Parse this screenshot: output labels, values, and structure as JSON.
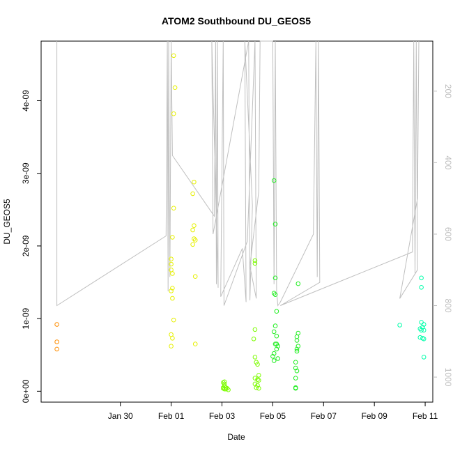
{
  "chart_data": {
    "type": "scatter",
    "title": "ATOM2 Southbound DU_GEOS5",
    "xlabel": "Date",
    "ylabel": "DU_GEOS5",
    "x_axis": {
      "unit": "days since Jan 29 00:00",
      "range": [
        -2.12,
        13.3
      ],
      "ticks": [
        {
          "label": "Jan 30",
          "value": 1
        },
        {
          "label": "Feb 01",
          "value": 3
        },
        {
          "label": "Feb 03",
          "value": 5
        },
        {
          "label": "Feb 05",
          "value": 7
        },
        {
          "label": "Feb 07",
          "value": 9
        },
        {
          "label": "Feb 09",
          "value": 11
        },
        {
          "label": "Feb 11",
          "value": 13
        }
      ]
    },
    "y_axis": {
      "range": [
        -1.5e-10,
        4.82e-09
      ],
      "ticks": [
        {
          "label": "0e+00",
          "value": 0
        },
        {
          "label": "1e-09",
          "value": 1e-09
        },
        {
          "label": "2e-09",
          "value": 2e-09
        },
        {
          "label": "3e-09",
          "value": 3e-09
        },
        {
          "label": "4e-09",
          "value": 4e-09
        }
      ]
    },
    "y2_axis": {
      "note": "secondary axis, pressure, reversed (increasing downward)",
      "range": [
        60,
        1070
      ],
      "ticks": [
        {
          "label": "200",
          "value": 200
        },
        {
          "label": "400",
          "value": 400
        },
        {
          "label": "600",
          "value": 600
        },
        {
          "label": "800",
          "value": 800
        },
        {
          "label": "1000",
          "value": 1000
        }
      ]
    },
    "profile_line": {
      "color": "#bfbfbf",
      "points": [
        [
          -1.5,
          60
        ],
        [
          -1.5,
          800
        ],
        [
          2.8,
          605
        ],
        [
          2.85,
          60
        ],
        [
          2.88,
          760
        ],
        [
          2.9,
          60
        ],
        [
          2.95,
          720
        ],
        [
          3.0,
          60
        ],
        [
          3.05,
          380
        ],
        [
          4.7,
          550
        ],
        [
          4.75,
          60
        ],
        [
          4.78,
          740
        ],
        [
          4.82,
          60
        ],
        [
          4.85,
          750
        ],
        [
          4.6,
          60
        ],
        [
          4.65,
          600
        ],
        [
          6.05,
          60
        ],
        [
          6.1,
          785
        ],
        [
          6.2,
          520
        ],
        [
          5.9,
          60
        ],
        [
          5.95,
          790
        ],
        [
          5.8,
          640
        ],
        [
          4.95,
          775
        ],
        [
          5.05,
          60
        ],
        [
          5.08,
          800
        ],
        [
          6.0,
          620
        ],
        [
          6.3,
          60
        ],
        [
          6.35,
          780
        ],
        [
          6.1,
          690
        ],
        [
          6.45,
          480
        ],
        [
          6.5,
          60
        ],
        [
          7.0,
          60
        ],
        [
          7.05,
          740
        ],
        [
          7.1,
          60
        ],
        [
          7.15,
          760
        ],
        [
          7.2,
          800
        ],
        [
          7.3,
          790
        ],
        [
          8.6,
          600
        ],
        [
          8.7,
          60
        ],
        [
          8.75,
          720
        ],
        [
          8.8,
          60
        ],
        [
          8.85,
          735
        ],
        [
          7.3,
          800
        ],
        [
          12.5,
          650
        ],
        [
          12.55,
          60
        ],
        [
          12.6,
          710
        ],
        [
          12.65,
          60
        ],
        [
          12.7,
          700
        ],
        [
          12.0,
          780
        ],
        [
          12.7,
          500
        ],
        [
          12.75,
          60
        ]
      ]
    },
    "series": [
      {
        "color": "#ff8c00",
        "points": [
          [
            -1.5,
            9.2e-10
          ],
          [
            -1.5,
            6.8e-10
          ],
          [
            -1.5,
            5.8e-10
          ]
        ]
      },
      {
        "color": "#e6f000",
        "points": [
          [
            3.1,
            4.62e-09
          ],
          [
            3.15,
            4.18e-09
          ],
          [
            3.1,
            3.82e-09
          ],
          [
            3.1,
            2.52e-09
          ],
          [
            3.05,
            2.12e-09
          ],
          [
            3.0,
            1.82e-09
          ],
          [
            3.0,
            1.75e-09
          ],
          [
            3.0,
            1.67e-09
          ],
          [
            3.05,
            1.62e-09
          ],
          [
            3.05,
            1.42e-09
          ],
          [
            3.0,
            1.38e-09
          ],
          [
            3.05,
            1.28e-09
          ],
          [
            3.1,
            9.8e-10
          ],
          [
            3.0,
            7.8e-10
          ],
          [
            3.05,
            7.3e-10
          ],
          [
            3.0,
            6.2e-10
          ],
          [
            3.9,
            2.88e-09
          ],
          [
            3.85,
            2.72e-09
          ],
          [
            3.9,
            2.28e-09
          ],
          [
            3.85,
            2.22e-09
          ],
          [
            3.9,
            2.1e-09
          ],
          [
            3.95,
            2.08e-09
          ],
          [
            3.85,
            2.02e-09
          ],
          [
            3.95,
            1.58e-09
          ],
          [
            3.95,
            6.5e-10
          ]
        ]
      },
      {
        "color": "#7cfc00",
        "points": [
          [
            5.05,
            1.2e-10
          ],
          [
            5.1,
            1e-10
          ],
          [
            5.1,
            7e-11
          ],
          [
            5.15,
            5e-11
          ],
          [
            5.05,
            5e-11
          ],
          [
            5.2,
            4e-11
          ],
          [
            5.1,
            3e-11
          ],
          [
            5.15,
            3e-11
          ],
          [
            5.25,
            2e-11
          ],
          [
            5.05,
            4e-11
          ],
          [
            5.1,
            1.3e-10
          ],
          [
            6.3,
            8.5e-10
          ],
          [
            6.25,
            7.2e-10
          ],
          [
            6.3,
            4.7e-10
          ],
          [
            6.35,
            4e-10
          ],
          [
            6.4,
            3.7e-10
          ],
          [
            6.45,
            2.2e-10
          ],
          [
            6.3,
            1.8e-10
          ],
          [
            6.4,
            1.6e-10
          ],
          [
            6.45,
            1.5e-10
          ],
          [
            6.3,
            1e-10
          ],
          [
            6.4,
            8e-11
          ],
          [
            6.35,
            5e-11
          ],
          [
            6.45,
            4e-11
          ],
          [
            6.3,
            1.8e-09
          ],
          [
            6.3,
            1.76e-09
          ]
        ]
      },
      {
        "color": "#22ee22",
        "points": [
          [
            7.05,
            2.9e-09
          ],
          [
            7.1,
            2.3e-09
          ],
          [
            7.1,
            1.56e-09
          ],
          [
            7.05,
            1.35e-09
          ],
          [
            7.1,
            1.33e-09
          ],
          [
            7.15,
            1.1e-09
          ],
          [
            7.1,
            9e-10
          ],
          [
            7.05,
            8.2e-10
          ],
          [
            7.15,
            7.6e-10
          ],
          [
            7.1,
            6.5e-10
          ],
          [
            7.15,
            6.5e-10
          ],
          [
            7.2,
            6.2e-10
          ],
          [
            7.15,
            5.8e-10
          ],
          [
            7.05,
            5.2e-10
          ],
          [
            7.0,
            4.8e-10
          ],
          [
            7.2,
            4.5e-10
          ],
          [
            7.05,
            4.2e-10
          ],
          [
            8.0,
            1.48e-09
          ],
          [
            8.0,
            8e-10
          ],
          [
            7.95,
            7.5e-10
          ],
          [
            7.95,
            7e-10
          ],
          [
            8.0,
            6.2e-10
          ],
          [
            7.95,
            5.8e-10
          ],
          [
            7.95,
            5.5e-10
          ],
          [
            7.9,
            4e-10
          ],
          [
            7.9,
            3.2e-10
          ],
          [
            7.95,
            2.8e-10
          ],
          [
            7.9,
            1.8e-10
          ],
          [
            7.9,
            5e-11
          ],
          [
            7.9,
            4e-11
          ]
        ]
      },
      {
        "color": "#00ffaa",
        "points": [
          [
            12.0,
            9.1e-10
          ],
          [
            12.85,
            1.56e-09
          ],
          [
            12.85,
            1.43e-09
          ],
          [
            12.85,
            9.5e-10
          ],
          [
            12.95,
            9.2e-10
          ],
          [
            12.9,
            8.8e-10
          ],
          [
            12.8,
            8.6e-10
          ],
          [
            12.85,
            8.4e-10
          ],
          [
            12.95,
            8.4e-10
          ],
          [
            12.8,
            7.4e-10
          ],
          [
            12.9,
            7.3e-10
          ],
          [
            12.95,
            7.2e-10
          ],
          [
            12.95,
            4.7e-10
          ]
        ]
      }
    ]
  }
}
